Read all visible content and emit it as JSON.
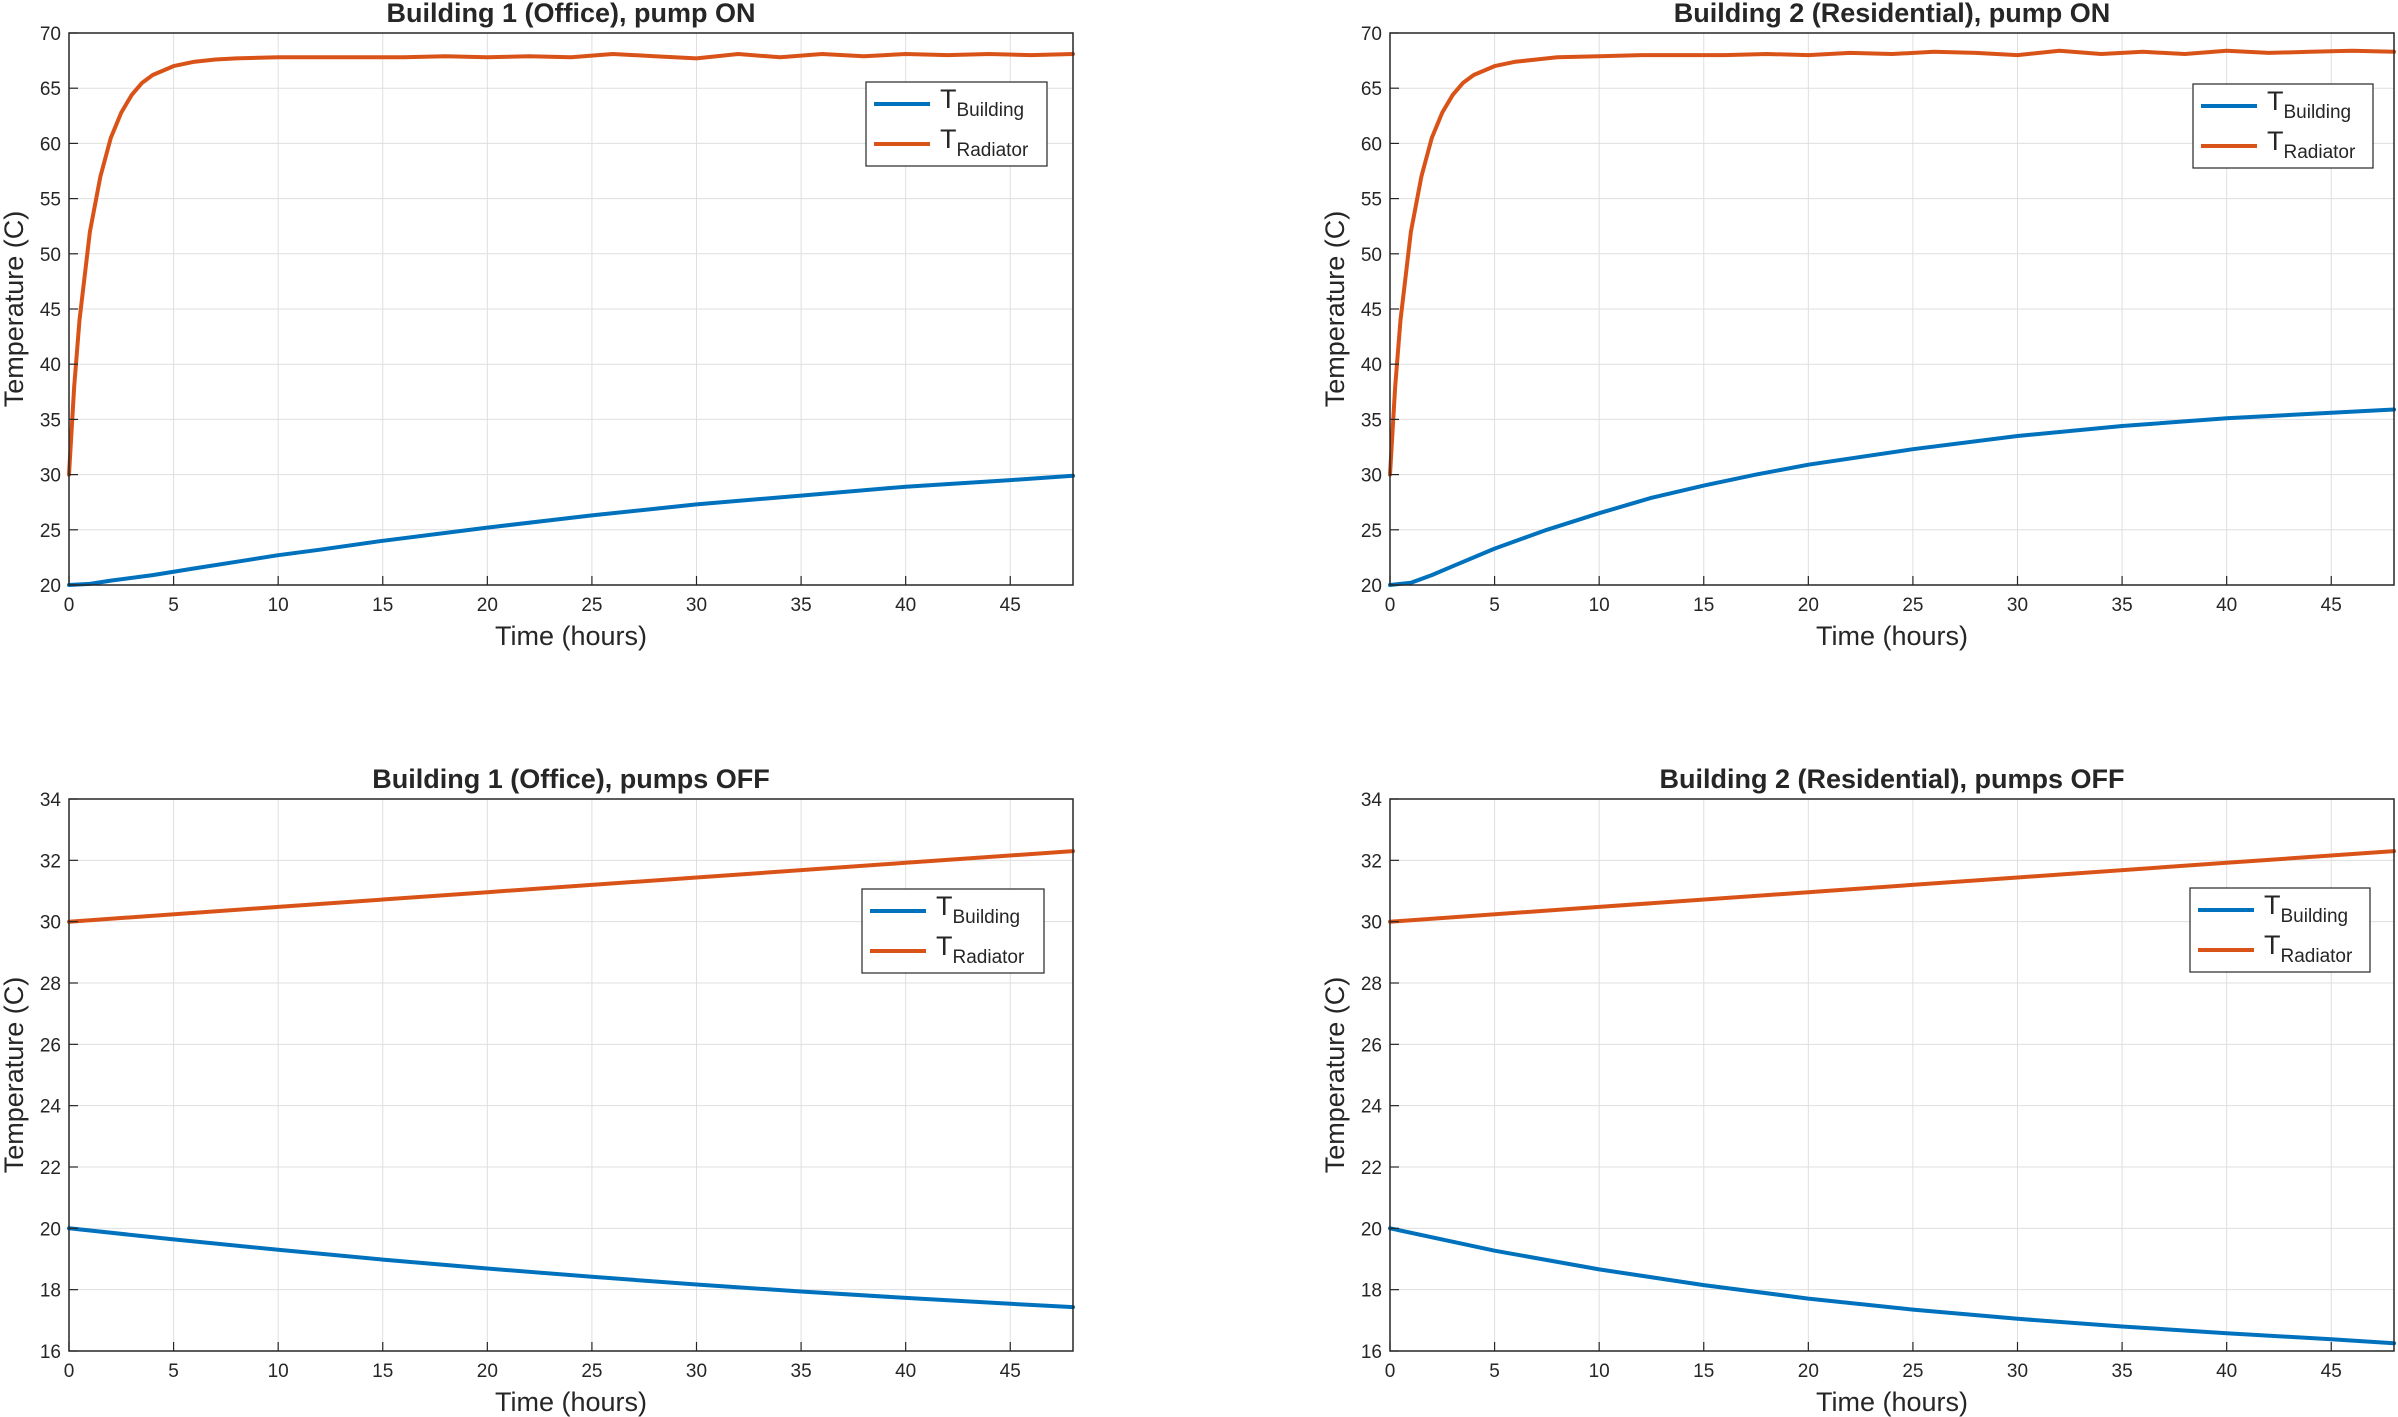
{
  "colors": {
    "building": "#0072BD",
    "radiator": "#D95319",
    "grid": "#DFDFDF",
    "axis": "#262626"
  },
  "chart_data": [
    {
      "type": "line",
      "title": "Building 1 (Office), pump ON",
      "xlabel": "Time (hours)",
      "ylabel": "Temperature (C)",
      "xlim": [
        0,
        48
      ],
      "ylim": [
        20,
        70
      ],
      "xticks": [
        0,
        5,
        10,
        15,
        20,
        25,
        30,
        35,
        40,
        45
      ],
      "yticks": [
        20,
        25,
        30,
        35,
        40,
        45,
        50,
        55,
        60,
        65,
        70
      ],
      "grid": true,
      "legend_position": "top-right",
      "series": [
        {
          "name": "T_Building",
          "label_main": "T",
          "label_sub": "Building",
          "color": "#0072BD",
          "x": [
            0,
            1,
            2,
            4,
            6,
            8,
            10,
            12,
            15,
            20,
            25,
            30,
            35,
            40,
            45,
            48
          ],
          "y": [
            20,
            20.1,
            20.4,
            20.9,
            21.5,
            22.1,
            22.7,
            23.2,
            24.0,
            25.2,
            26.3,
            27.3,
            28.1,
            28.9,
            29.5,
            29.9
          ]
        },
        {
          "name": "T_Radiator",
          "label_main": "T",
          "label_sub": "Radiator",
          "color": "#D95319",
          "x": [
            0,
            0.25,
            0.5,
            1,
            1.5,
            2,
            2.5,
            3,
            3.5,
            4,
            5,
            6,
            7,
            8,
            10,
            12,
            14,
            16,
            18,
            20,
            22,
            24,
            26,
            28,
            30,
            32,
            34,
            36,
            38,
            40,
            42,
            44,
            46,
            48
          ],
          "y": [
            30,
            38,
            44,
            52,
            57,
            60.5,
            62.8,
            64.4,
            65.5,
            66.2,
            67.0,
            67.4,
            67.6,
            67.7,
            67.8,
            67.8,
            67.8,
            67.8,
            67.9,
            67.8,
            67.9,
            67.8,
            68.1,
            67.9,
            67.7,
            68.1,
            67.8,
            68.1,
            67.9,
            68.1,
            68.0,
            68.1,
            68.0,
            68.1
          ]
        }
      ]
    },
    {
      "type": "line",
      "title": "Building 2 (Residential), pump ON",
      "xlabel": "Time (hours)",
      "ylabel": "Temperature (C)",
      "xlim": [
        0,
        48
      ],
      "ylim": [
        20,
        70
      ],
      "xticks": [
        0,
        5,
        10,
        15,
        20,
        25,
        30,
        35,
        40,
        45
      ],
      "yticks": [
        20,
        25,
        30,
        35,
        40,
        45,
        50,
        55,
        60,
        65,
        70
      ],
      "grid": true,
      "legend_position": "top-right",
      "series": [
        {
          "name": "T_Building",
          "label_main": "T",
          "label_sub": "Building",
          "color": "#0072BD",
          "x": [
            0,
            1,
            2,
            3,
            5,
            7.5,
            10,
            12.5,
            15,
            17.5,
            20,
            25,
            30,
            35,
            40,
            45,
            48
          ],
          "y": [
            20,
            20.2,
            20.9,
            21.7,
            23.3,
            25.0,
            26.5,
            27.9,
            29.0,
            30.0,
            30.9,
            32.3,
            33.5,
            34.4,
            35.1,
            35.6,
            35.9
          ]
        },
        {
          "name": "T_Radiator",
          "label_main": "T",
          "label_sub": "Radiator",
          "color": "#D95319",
          "x": [
            0,
            0.25,
            0.5,
            1,
            1.5,
            2,
            2.5,
            3,
            3.5,
            4,
            5,
            6,
            7,
            8,
            10,
            12,
            14,
            16,
            18,
            20,
            22,
            24,
            26,
            28,
            30,
            32,
            34,
            36,
            38,
            40,
            42,
            44,
            46,
            48
          ],
          "y": [
            30,
            38,
            44,
            52,
            57,
            60.5,
            62.8,
            64.4,
            65.5,
            66.2,
            67.0,
            67.4,
            67.6,
            67.8,
            67.9,
            68.0,
            68.0,
            68.0,
            68.1,
            68.0,
            68.2,
            68.1,
            68.3,
            68.2,
            68.0,
            68.4,
            68.1,
            68.3,
            68.1,
            68.4,
            68.2,
            68.3,
            68.4,
            68.3
          ]
        }
      ]
    },
    {
      "type": "line",
      "title": "Building 1 (Office), pumps OFF",
      "xlabel": "Time (hours)",
      "ylabel": "Temperature (C)",
      "xlim": [
        0,
        48
      ],
      "ylim": [
        16,
        34
      ],
      "xticks": [
        0,
        5,
        10,
        15,
        20,
        25,
        30,
        35,
        40,
        45
      ],
      "yticks": [
        16,
        18,
        20,
        22,
        24,
        26,
        28,
        30,
        32,
        34
      ],
      "grid": true,
      "legend_position": "top-right",
      "series": [
        {
          "name": "T_Building",
          "label_main": "T",
          "label_sub": "Building",
          "color": "#0072BD",
          "x": [
            0,
            5,
            10,
            15,
            20,
            25,
            30,
            35,
            40,
            45,
            48
          ],
          "y": [
            20,
            19.64,
            19.3,
            18.98,
            18.69,
            18.42,
            18.17,
            17.94,
            17.73,
            17.54,
            17.43
          ]
        },
        {
          "name": "T_Radiator",
          "label_main": "T",
          "label_sub": "Radiator",
          "color": "#D95319",
          "x": [
            0,
            10,
            20,
            30,
            40,
            48
          ],
          "y": [
            30,
            30.48,
            30.96,
            31.44,
            31.92,
            32.3
          ]
        }
      ]
    },
    {
      "type": "line",
      "title": "Building 2 (Residential), pumps OFF",
      "xlabel": "Time (hours)",
      "ylabel": "Temperature (C)",
      "xlim": [
        0,
        48
      ],
      "ylim": [
        16,
        34
      ],
      "xticks": [
        0,
        5,
        10,
        15,
        20,
        25,
        30,
        35,
        40,
        45
      ],
      "yticks": [
        16,
        18,
        20,
        22,
        24,
        26,
        28,
        30,
        32,
        34
      ],
      "grid": true,
      "legend_position": "top-right",
      "series": [
        {
          "name": "T_Building",
          "label_main": "T",
          "label_sub": "Building",
          "color": "#0072BD",
          "x": [
            0,
            5,
            10,
            15,
            20,
            25,
            30,
            35,
            40,
            45,
            48
          ],
          "y": [
            20,
            19.27,
            18.66,
            18.15,
            17.71,
            17.35,
            17.05,
            16.8,
            16.58,
            16.38,
            16.25
          ]
        },
        {
          "name": "T_Radiator",
          "label_main": "T",
          "label_sub": "Radiator",
          "color": "#D95319",
          "x": [
            0,
            10,
            20,
            30,
            40,
            48
          ],
          "y": [
            30,
            30.48,
            30.96,
            31.44,
            31.92,
            32.3
          ]
        }
      ]
    }
  ]
}
